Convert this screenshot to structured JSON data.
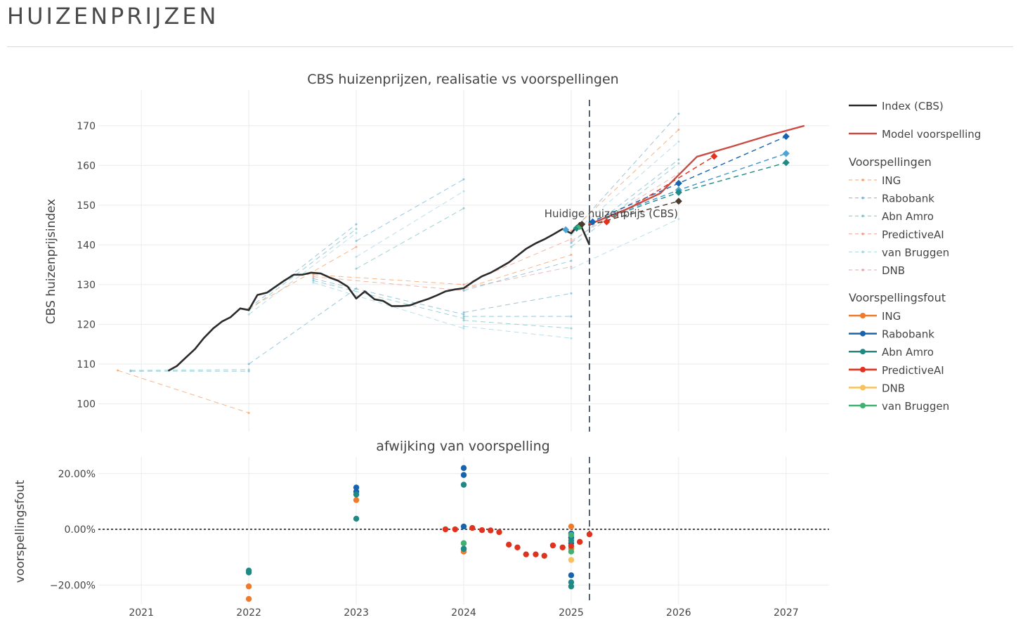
{
  "page": {
    "title": "HUIZENPRIJZEN"
  },
  "chart_data": [
    {
      "type": "line",
      "title": "CBS huizenprijzen, realisatie vs voorspellingen",
      "xlabel": "",
      "ylabel": "CBS huizenprijsindex",
      "xlim": [
        2020.6,
        2027.4
      ],
      "ylim": [
        93,
        179
      ],
      "x_ticks": [
        "2021",
        "2022",
        "2023",
        "2024",
        "2025",
        "2026",
        "2027"
      ],
      "y_ticks": [
        100,
        110,
        120,
        130,
        140,
        150,
        160,
        170
      ],
      "grid": true,
      "legend_position": "right",
      "vline": {
        "x": 2025.17,
        "style": "dashed",
        "label": "Huidige huizenprijs (CBS)",
        "label_x": 2024.75,
        "label_y": 147
      },
      "series": [
        {
          "name": "Index (CBS)",
          "color": "#2b2b2b",
          "style": "solid-thick",
          "x": [
            2021.25,
            2021.33,
            2021.42,
            2021.5,
            2021.58,
            2021.67,
            2021.75,
            2021.83,
            2021.92,
            2022.0,
            2022.08,
            2022.17,
            2022.25,
            2022.33,
            2022.42,
            2022.5,
            2022.58,
            2022.67,
            2022.75,
            2022.83,
            2022.92,
            2023.0,
            2023.08,
            2023.17,
            2023.25,
            2023.33,
            2023.42,
            2023.5,
            2023.58,
            2023.67,
            2023.75,
            2023.83,
            2023.92,
            2024.0,
            2024.08,
            2024.17,
            2024.25,
            2024.33,
            2024.42,
            2024.5,
            2024.58,
            2024.67,
            2024.75,
            2024.83,
            2024.92,
            2025.0,
            2025.08,
            2025.17
          ],
          "y": [
            108.3,
            109.5,
            111.8,
            113.8,
            116.5,
            119.0,
            120.7,
            121.8,
            124.0,
            123.6,
            127.4,
            128.0,
            129.5,
            131.0,
            132.5,
            132.5,
            133.0,
            132.8,
            131.8,
            131.0,
            129.5,
            126.5,
            128.3,
            126.3,
            125.9,
            124.6,
            124.6,
            124.8,
            125.6,
            126.4,
            127.3,
            128.3,
            128.8,
            129.1,
            130.6,
            132.1,
            133.0,
            134.2,
            135.6,
            137.3,
            139.0,
            140.4,
            141.4,
            142.6,
            144.0,
            142.9,
            145.5,
            140.0
          ]
        },
        {
          "name": "Model voorspelling",
          "color": "#cb4b42",
          "style": "solid",
          "x": [
            2025.17,
            2025.5,
            2025.83,
            2026.17,
            2026.5,
            2026.83,
            2027.17
          ],
          "y": [
            145.2,
            148.8,
            153.0,
            162.2,
            164.8,
            167.5,
            170.0
          ]
        }
      ],
      "forecast_groups": [
        {
          "name": "Voorspellingen",
          "items": [
            {
              "name": "ING",
              "color": "#f4a36a"
            },
            {
              "name": "Rabobank",
              "color": "#7cb9d6"
            },
            {
              "name": "Abn Amro",
              "color": "#83c7c6"
            },
            {
              "name": "PredictiveAI",
              "color": "#f2a18f"
            },
            {
              "name": "van Bruggen",
              "color": "#a7d7e6"
            },
            {
              "name": "DNB",
              "color": "#e6a7ad"
            }
          ],
          "paths": [
            {
              "color": "#f4a36a",
              "x": [
                2020.78,
                2022.0
              ],
              "y": [
                108.4,
                97.7
              ]
            },
            {
              "color": "#7cb9d6",
              "x": [
                2020.9,
                2022.0
              ],
              "y": [
                108.2,
                108.2
              ]
            },
            {
              "color": "#83c7c6",
              "x": [
                2020.9,
                2022.0
              ],
              "y": [
                108.4,
                108.6
              ]
            },
            {
              "color": "#7cb9d6",
              "x": [
                2022.0,
                2023.0
              ],
              "y": [
                124.0,
                145.2
              ]
            },
            {
              "color": "#83c7c6",
              "x": [
                2022.0,
                2023.0
              ],
              "y": [
                123.5,
                144.0
              ]
            },
            {
              "color": "#a7d7e6",
              "x": [
                2022.0,
                2023.0
              ],
              "y": [
                122.5,
                143.0
              ]
            },
            {
              "color": "#f4a36a",
              "x": [
                2022.0,
                2023.0
              ],
              "y": [
                124.0,
                139.5
              ]
            },
            {
              "color": "#7cb9d6",
              "x": [
                2022.0,
                2023.0
              ],
              "y": [
                110.0,
                129.0
              ]
            },
            {
              "color": "#7cb9d6",
              "x": [
                2023.0,
                2024.0
              ],
              "y": [
                141.0,
                156.5
              ]
            },
            {
              "color": "#a7d7e6",
              "x": [
                2023.0,
                2024.0
              ],
              "y": [
                137.0,
                153.5
              ]
            },
            {
              "color": "#83c7c6",
              "x": [
                2023.0,
                2024.0
              ],
              "y": [
                134.0,
                149.2
              ]
            },
            {
              "color": "#f4a36a",
              "x": [
                2022.6,
                2024.0
              ],
              "y": [
                132.5,
                130.0
              ]
            },
            {
              "color": "#f2a18f",
              "x": [
                2022.6,
                2024.0
              ],
              "y": [
                132.0,
                128.5
              ]
            },
            {
              "color": "#7cb9d6",
              "x": [
                2022.6,
                2024.0
              ],
              "y": [
                131.5,
                122.5
              ]
            },
            {
              "color": "#83c7c6",
              "x": [
                2022.6,
                2024.0
              ],
              "y": [
                131.0,
                121.5
              ]
            },
            {
              "color": "#a7d7e6",
              "x": [
                2022.6,
                2024.0
              ],
              "y": [
                130.5,
                119.0
              ]
            },
            {
              "color": "#7cb9d6",
              "x": [
                2024.0,
                2025.0
              ],
              "y": [
                122.0,
                122.0
              ]
            },
            {
              "color": "#83c7c6",
              "x": [
                2024.0,
                2025.0
              ],
              "y": [
                121.0,
                119.0
              ]
            },
            {
              "color": "#a7d7e6",
              "x": [
                2024.0,
                2025.0
              ],
              "y": [
                119.5,
                116.5
              ]
            },
            {
              "color": "#7cb9d6",
              "x": [
                2024.0,
                2025.0
              ],
              "y": [
                123.0,
                127.8
              ]
            },
            {
              "color": "#f4a36a",
              "x": [
                2024.0,
                2025.0
              ],
              "y": [
                129.0,
                137.5
              ]
            },
            {
              "color": "#e6a7ad",
              "x": [
                2024.0,
                2025.0
              ],
              "y": [
                129.0,
                134.5
              ]
            },
            {
              "color": "#7cb9d6",
              "x": [
                2024.0,
                2025.0
              ],
              "y": [
                128.5,
                136.0
              ]
            },
            {
              "color": "#f2a18f",
              "x": [
                2024.0,
                2025.0
              ],
              "y": [
                130.0,
                141.5
              ]
            },
            {
              "color": "#7cb9d6",
              "x": [
                2025.0,
                2026.0
              ],
              "y": [
                143.0,
                173.0
              ]
            },
            {
              "color": "#f4a36a",
              "x": [
                2025.0,
                2026.0
              ],
              "y": [
                143.5,
                169.0
              ]
            },
            {
              "color": "#a7d7e6",
              "x": [
                2025.0,
                2026.0
              ],
              "y": [
                142.5,
                166.0
              ]
            },
            {
              "color": "#7cb9d6",
              "x": [
                2025.0,
                2026.0
              ],
              "y": [
                140.5,
                161.5
              ]
            },
            {
              "color": "#83c7c6",
              "x": [
                2025.0,
                2026.0
              ],
              "y": [
                139.5,
                160.5
              ]
            },
            {
              "color": "#e6a7ad",
              "x": [
                2025.0,
                2026.0
              ],
              "y": [
                141.0,
                158.0
              ]
            },
            {
              "color": "#a7d7e6",
              "x": [
                2025.0,
                2026.0
              ],
              "y": [
                134.0,
                146.5
              ]
            }
          ]
        },
        {
          "name": "Voorspellingsfout",
          "items": [
            {
              "name": "ING",
              "color": "#f07a2a"
            },
            {
              "name": "Rabobank",
              "color": "#1763ae"
            },
            {
              "name": "Abn Amro",
              "color": "#1f8a84"
            },
            {
              "name": "PredictiveAI",
              "color": "#e2321e"
            },
            {
              "name": "DNB",
              "color": "#f7c160"
            },
            {
              "name": "van Bruggen",
              "color": "#3fb273"
            }
          ],
          "paths": [
            {
              "color": "#1763ae",
              "x": [
                2025.17,
                2026.0,
                2027.0
              ],
              "y": [
                145.6,
                155.5,
                167.3
              ]
            },
            {
              "color": "#3b95c8",
              "x": [
                2025.17,
                2026.0,
                2027.0
              ],
              "y": [
                145.4,
                153.8,
                163.0
              ]
            },
            {
              "color": "#1f8a84",
              "x": [
                2025.17,
                2026.0,
                2027.0
              ],
              "y": [
                145.2,
                153.2,
                160.7
              ]
            },
            {
              "color": "#e2321e",
              "x": [
                2025.17,
                2025.33,
                2026.33
              ],
              "y": [
                145.3,
                145.8,
                162.3
              ]
            },
            {
              "color": "#4a3a30",
              "x": [
                2025.17,
                2026.0
              ],
              "y": [
                145.0,
                151.0
              ]
            }
          ],
          "markers": [
            {
              "color": "#1763ae",
              "x": 2027.0,
              "y": 167.3
            },
            {
              "color": "#4da3d4",
              "x": 2027.0,
              "y": 163.0
            },
            {
              "color": "#1f8a84",
              "x": 2027.0,
              "y": 160.7
            },
            {
              "color": "#1763ae",
              "x": 2026.0,
              "y": 155.5
            },
            {
              "color": "#4da3d4",
              "x": 2026.0,
              "y": 153.8
            },
            {
              "color": "#1f8a84",
              "x": 2026.0,
              "y": 153.2
            },
            {
              "color": "#4a3a30",
              "x": 2026.0,
              "y": 151.0
            },
            {
              "color": "#e2321e",
              "x": 2026.33,
              "y": 162.3
            },
            {
              "color": "#e2321e",
              "x": 2025.33,
              "y": 145.8
            },
            {
              "color": "#4da3d4",
              "x": 2024.95,
              "y": 143.8
            },
            {
              "color": "#1f8a84",
              "x": 2025.05,
              "y": 144.2
            },
            {
              "color": "#3fb273",
              "x": 2025.08,
              "y": 144.6
            },
            {
              "color": "#4a3a30",
              "x": 2025.1,
              "y": 145.2
            },
            {
              "color": "#1763ae",
              "x": 2025.2,
              "y": 145.8
            }
          ]
        }
      ]
    },
    {
      "type": "scatter",
      "title": "afwijking van voorspelling",
      "ylabel": "voorspellingsfout",
      "xlim": [
        2020.6,
        2027.4
      ],
      "ylim": [
        -0.27,
        0.26
      ],
      "y_ticks": [
        {
          "value": 0.2,
          "label": "20.00%"
        },
        {
          "value": 0.0,
          "label": "0.00%"
        },
        {
          "value": -0.2,
          "label": "−20.00%"
        }
      ],
      "x_ticks": [
        "2021",
        "2022",
        "2023",
        "2024",
        "2025",
        "2026",
        "2027"
      ],
      "hline": {
        "y": 0,
        "style": "dotted"
      },
      "vline": {
        "x": 2025.17,
        "style": "dashed"
      },
      "series": [
        {
          "name": "ING",
          "color": "#f07a2a",
          "x": [
            2022.0,
            2022.0,
            2023.0,
            2024.0,
            2025.0,
            2025.0
          ],
          "y": [
            -0.25,
            -0.205,
            0.105,
            -0.08,
            0.01,
            -0.07
          ]
        },
        {
          "name": "Rabobank",
          "color": "#1763ae",
          "x": [
            2023.0,
            2023.0,
            2024.0,
            2024.0,
            2024.0,
            2024.0,
            2025.0,
            2025.0,
            2025.0,
            2025.0
          ],
          "y": [
            0.15,
            0.135,
            0.22,
            0.195,
            0.01,
            -0.07,
            -0.165,
            -0.03,
            -0.015,
            -0.05
          ]
        },
        {
          "name": "Abn Amro",
          "color": "#1f8a84",
          "x": [
            2022.0,
            2022.0,
            2023.0,
            2023.0,
            2024.0,
            2024.0,
            2024.0,
            2025.0,
            2025.0,
            2025.0
          ],
          "y": [
            -0.148,
            -0.155,
            0.038,
            0.125,
            0.16,
            -0.05,
            -0.07,
            -0.19,
            -0.205,
            -0.04
          ]
        },
        {
          "name": "PredictiveAI",
          "color": "#e2321e",
          "x": [
            2023.83,
            2023.92,
            2024.08,
            2024.17,
            2024.25,
            2024.33,
            2024.42,
            2024.5,
            2024.58,
            2024.67,
            2024.75,
            2024.83,
            2024.92,
            2025.0,
            2025.08,
            2025.17
          ],
          "y": [
            0.0,
            0.0,
            0.005,
            -0.003,
            -0.004,
            -0.01,
            -0.055,
            -0.065,
            -0.09,
            -0.09,
            -0.095,
            -0.058,
            -0.065,
            -0.06,
            -0.045,
            -0.018
          ]
        },
        {
          "name": "DNB",
          "color": "#f7c160",
          "x": [
            2025.0
          ],
          "y": [
            -0.11
          ]
        },
        {
          "name": "van Bruggen",
          "color": "#3fb273",
          "x": [
            2024.0,
            2025.0,
            2025.0
          ],
          "y": [
            -0.05,
            -0.02,
            -0.08
          ]
        }
      ]
    }
  ],
  "legend": {
    "index_label": "Index (CBS)",
    "model_label": "Model voorspelling",
    "group1_title": "Voorspellingen",
    "group2_title": "Voorspellingsfout"
  }
}
